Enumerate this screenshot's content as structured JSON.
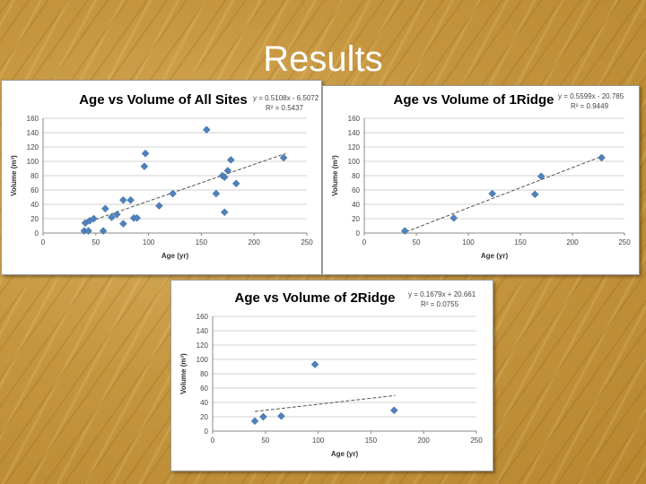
{
  "slide": {
    "title": "Results"
  },
  "chart_data": [
    {
      "id": "all",
      "type": "scatter",
      "title": "Age vs Volume of All Sites",
      "equation": "y = 0.5108x - 6.5072",
      "r2": "R² = 0.5437",
      "xlabel": "Age (yr)",
      "ylabel": "Volume (m³)",
      "xlim": [
        0,
        250
      ],
      "ylim": [
        0,
        160
      ],
      "xticks": [
        0,
        50,
        100,
        150,
        200,
        250
      ],
      "yticks": [
        0,
        20,
        40,
        60,
        80,
        100,
        120,
        140,
        160
      ],
      "grid": true,
      "marker_color": "#4f81bd",
      "trendline": {
        "slope": 0.5108,
        "intercept": -6.5072,
        "x_range": [
          40,
          230
        ]
      },
      "points": [
        {
          "x": 39,
          "y": 3
        },
        {
          "x": 40,
          "y": 14
        },
        {
          "x": 43,
          "y": 3
        },
        {
          "x": 44,
          "y": 17
        },
        {
          "x": 48,
          "y": 20
        },
        {
          "x": 57,
          "y": 3
        },
        {
          "x": 59,
          "y": 34
        },
        {
          "x": 65,
          "y": 22
        },
        {
          "x": 70,
          "y": 26
        },
        {
          "x": 76,
          "y": 13
        },
        {
          "x": 76,
          "y": 46
        },
        {
          "x": 83,
          "y": 46
        },
        {
          "x": 86,
          "y": 21
        },
        {
          "x": 89,
          "y": 21
        },
        {
          "x": 96,
          "y": 93
        },
        {
          "x": 97,
          "y": 111
        },
        {
          "x": 110,
          "y": 38
        },
        {
          "x": 123,
          "y": 55
        },
        {
          "x": 155,
          "y": 144
        },
        {
          "x": 164,
          "y": 55
        },
        {
          "x": 170,
          "y": 80
        },
        {
          "x": 172,
          "y": 29
        },
        {
          "x": 172,
          "y": 78
        },
        {
          "x": 175,
          "y": 87
        },
        {
          "x": 178,
          "y": 102
        },
        {
          "x": 183,
          "y": 69
        },
        {
          "x": 228,
          "y": 105
        }
      ]
    },
    {
      "id": "1ridge",
      "type": "scatter",
      "title": "Age vs Volume of 1Ridge",
      "equation": "y = 0.5599x - 20.785",
      "r2": "R² = 0.9449",
      "xlabel": "Age (yr)",
      "ylabel": "Volume (m³)",
      "xlim": [
        0,
        250
      ],
      "ylim": [
        0,
        160
      ],
      "xticks": [
        0,
        50,
        100,
        150,
        200,
        250
      ],
      "yticks": [
        0,
        20,
        40,
        60,
        80,
        100,
        120,
        140,
        160
      ],
      "grid": true,
      "marker_color": "#4f81bd",
      "trendline": {
        "slope": 0.5599,
        "intercept": -20.785,
        "x_range": [
          40,
          230
        ]
      },
      "points": [
        {
          "x": 39,
          "y": 3
        },
        {
          "x": 86,
          "y": 21
        },
        {
          "x": 123,
          "y": 55
        },
        {
          "x": 164,
          "y": 54
        },
        {
          "x": 170,
          "y": 79
        },
        {
          "x": 228,
          "y": 105
        }
      ]
    },
    {
      "id": "2ridge",
      "type": "scatter",
      "title": "Age vs Volume of 2Ridge",
      "equation": "y = 0.1679x + 20.661",
      "r2": "R² = 0.0755",
      "xlabel": "Age (yr)",
      "ylabel": "Volume (m³)",
      "xlim": [
        0,
        250
      ],
      "ylim": [
        0,
        160
      ],
      "xticks": [
        0,
        50,
        100,
        150,
        200,
        250
      ],
      "yticks": [
        0,
        20,
        40,
        60,
        80,
        100,
        120,
        140,
        160
      ],
      "grid": true,
      "marker_color": "#4f81bd",
      "trendline": {
        "slope": 0.1679,
        "intercept": 20.661,
        "x_range": [
          40,
          173
        ]
      },
      "points": [
        {
          "x": 40,
          "y": 14
        },
        {
          "x": 48,
          "y": 20
        },
        {
          "x": 65,
          "y": 21
        },
        {
          "x": 97,
          "y": 93
        },
        {
          "x": 172,
          "y": 29
        }
      ]
    }
  ]
}
